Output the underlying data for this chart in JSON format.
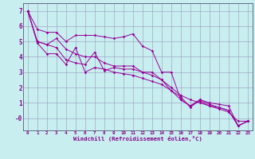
{
  "xlabel": "Windchill (Refroidissement éolien,°C)",
  "bg_color": "#c8eef0",
  "grid_color": "#aaaacc",
  "line_color": "#990099",
  "series": [
    [
      7.0,
      5.8,
      5.6,
      5.6,
      5.0,
      5.4,
      5.4,
      5.4,
      5.3,
      5.2,
      5.3,
      5.5,
      4.7,
      4.4,
      3.0,
      3.0,
      1.2,
      0.8,
      1.2,
      1.0,
      0.9,
      0.8,
      -0.5,
      -0.2
    ],
    [
      7.0,
      5.0,
      4.8,
      5.2,
      4.5,
      4.2,
      4.0,
      4.0,
      3.6,
      3.4,
      3.4,
      3.4,
      3.0,
      3.0,
      2.5,
      2.0,
      1.5,
      1.2,
      1.0,
      0.8,
      0.6,
      0.4,
      -0.2,
      -0.2
    ],
    [
      7.0,
      5.0,
      4.8,
      4.6,
      3.8,
      3.6,
      3.5,
      4.3,
      3.1,
      3.3,
      3.2,
      3.2,
      3.0,
      2.8,
      2.5,
      1.8,
      1.4,
      0.7,
      1.2,
      0.9,
      0.7,
      0.5,
      -0.5,
      -0.2
    ],
    [
      7.0,
      4.9,
      4.2,
      4.2,
      3.5,
      4.6,
      3.0,
      3.3,
      3.2,
      3.0,
      2.9,
      2.8,
      2.6,
      2.4,
      2.2,
      1.8,
      1.2,
      0.8,
      1.1,
      0.8,
      0.7,
      0.5,
      -0.5,
      -0.2
    ]
  ],
  "x_ticks": [
    0,
    1,
    2,
    3,
    4,
    5,
    6,
    7,
    8,
    9,
    10,
    11,
    12,
    13,
    14,
    15,
    16,
    17,
    18,
    19,
    20,
    21,
    22,
    23
  ],
  "y_ticks": [
    0,
    1,
    2,
    3,
    4,
    5,
    6,
    7
  ],
  "y_labels": [
    "-0",
    "1",
    "2",
    "3",
    "4",
    "5",
    "6",
    "7"
  ],
  "xlim": [
    -0.5,
    23.5
  ],
  "ylim": [
    -0.8,
    7.5
  ]
}
